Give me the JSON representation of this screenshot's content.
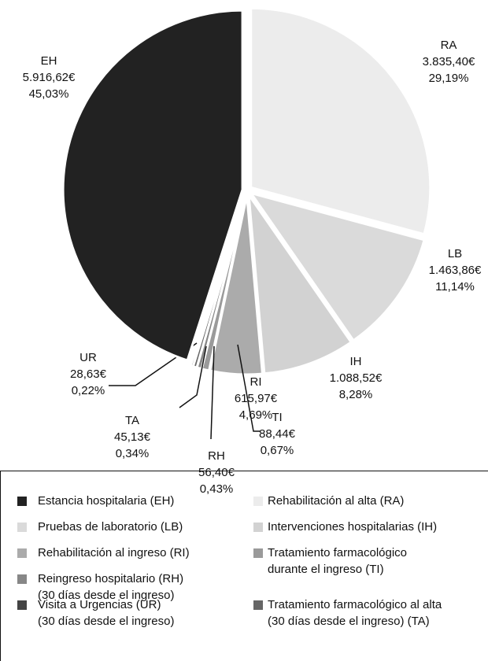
{
  "chart_data": {
    "type": "pie",
    "categories": [
      "RA",
      "LB",
      "IH",
      "RI",
      "TI",
      "RH",
      "TA",
      "UR",
      "EH"
    ],
    "values": [
      29.19,
      11.14,
      8.28,
      4.69,
      0.67,
      0.43,
      0.34,
      0.22,
      45.03
    ],
    "value_labels": [
      "29,19%",
      "11,14%",
      "8,28%",
      "4,69%",
      "0,67%",
      "0,43%",
      "0,34%",
      "0,22%",
      "45,03%"
    ],
    "amounts": [
      3835.4,
      1463.86,
      1088.52,
      615.97,
      88.44,
      56.4,
      45.13,
      28.63,
      5916.62
    ],
    "amount_labels": [
      "3.835,40€",
      "1.463,86€",
      "1.088,52€",
      "615,97€",
      "88,44€",
      "56,40€",
      "45,13€",
      "28,63€",
      "5.916,62€"
    ],
    "colors": [
      "#ececec",
      "#dadada",
      "#d2d2d2",
      "#ababab",
      "#9a9a9a",
      "#878787",
      "#666666",
      "#444444",
      "#222222"
    ],
    "legend": [
      {
        "label": [
          "Estancia hospitalaria (EH)"
        ],
        "color": "#222222"
      },
      {
        "label": [
          "Rehabilitación al alta (RA)"
        ],
        "color": "#ececec"
      },
      {
        "label": [
          "Pruebas de laboratorio (LB)"
        ],
        "color": "#dadada"
      },
      {
        "label": [
          "Intervenciones hospitalarias (IH)"
        ],
        "color": "#d2d2d2"
      },
      {
        "label": [
          "Rehabilitación al ingreso (RI)"
        ],
        "color": "#ababab"
      },
      {
        "label": [
          "Tratamiento farmacológico",
          "durante el ingreso (TI)"
        ],
        "color": "#9a9a9a"
      },
      {
        "label": [
          "Reingreso hospitalario (RH)",
          "(30 días desde el ingreso)"
        ],
        "color": "#878787"
      },
      {
        "label": [
          "Tratamiento farmacológico al alta",
          "(30 días desde el ingreso) (TA)"
        ],
        "color": "#666666"
      },
      {
        "label": [
          "Visita a Urgencias (UR)",
          "(30 días desde el ingreso)"
        ],
        "color": "#444444"
      }
    ]
  }
}
